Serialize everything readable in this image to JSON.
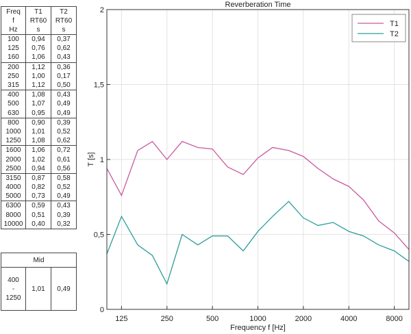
{
  "table": {
    "headers": [
      "Freq\nf\nHz",
      "T1\nRT60\ns",
      "T2\nRT60\ns"
    ],
    "groups": [
      [
        [
          "100",
          "0,94",
          "0,37"
        ],
        [
          "125",
          "0,76",
          "0,62"
        ],
        [
          "160",
          "1,06",
          "0,43"
        ]
      ],
      [
        [
          "200",
          "1,12",
          "0,36"
        ],
        [
          "250",
          "1,00",
          "0,17"
        ],
        [
          "315",
          "1,12",
          "0,50"
        ]
      ],
      [
        [
          "400",
          "1,08",
          "0,43"
        ],
        [
          "500",
          "1,07",
          "0,49"
        ],
        [
          "630",
          "0,95",
          "0,49"
        ]
      ],
      [
        [
          "800",
          "0,90",
          "0,39"
        ],
        [
          "1000",
          "1,01",
          "0,52"
        ],
        [
          "1250",
          "1,08",
          "0,62"
        ]
      ],
      [
        [
          "1600",
          "1,06",
          "0,72"
        ],
        [
          "2000",
          "1,02",
          "0,61"
        ],
        [
          "2500",
          "0,94",
          "0,56"
        ]
      ],
      [
        [
          "3150",
          "0,87",
          "0,58"
        ],
        [
          "4000",
          "0,82",
          "0,52"
        ],
        [
          "5000",
          "0,73",
          "0,49"
        ]
      ],
      [
        [
          "6300",
          "0,59",
          "0,43"
        ],
        [
          "8000",
          "0,51",
          "0,39"
        ],
        [
          "10000",
          "0,40",
          "0,32"
        ]
      ]
    ]
  },
  "mid_table": {
    "header": "Mid",
    "range": "400\n-\n1250",
    "t1": "1,01",
    "t2": "0,49"
  },
  "chart_data": {
    "type": "line",
    "title": "Reverberation Time",
    "xlabel": "Frequency f [Hz]",
    "ylabel": "T [s]",
    "x_scale": "log",
    "x": [
      100,
      125,
      160,
      200,
      250,
      315,
      400,
      500,
      630,
      800,
      1000,
      1250,
      1600,
      2000,
      2500,
      3150,
      4000,
      5000,
      6300,
      8000,
      10000
    ],
    "x_ticks": [
      125,
      250,
      500,
      1000,
      2000,
      4000,
      8000
    ],
    "y_ticks": [
      0,
      0.5,
      1,
      1.5,
      2
    ],
    "y_tick_labels": [
      "0",
      "0,5",
      "1",
      "1,5",
      "2"
    ],
    "xlim": [
      100,
      10000
    ],
    "ylim": [
      0,
      2
    ],
    "grid": true,
    "legend_position": "top-right",
    "series": [
      {
        "name": "T1",
        "color": "#c8589e",
        "values": [
          0.94,
          0.76,
          1.06,
          1.12,
          1.0,
          1.12,
          1.08,
          1.07,
          0.95,
          0.9,
          1.01,
          1.08,
          1.06,
          1.02,
          0.94,
          0.87,
          0.82,
          0.73,
          0.59,
          0.51,
          0.4
        ]
      },
      {
        "name": "T2",
        "color": "#2a9d9a",
        "values": [
          0.37,
          0.62,
          0.43,
          0.36,
          0.17,
          0.5,
          0.43,
          0.49,
          0.49,
          0.39,
          0.52,
          0.62,
          0.72,
          0.61,
          0.56,
          0.58,
          0.52,
          0.49,
          0.43,
          0.39,
          0.32
        ]
      }
    ]
  }
}
